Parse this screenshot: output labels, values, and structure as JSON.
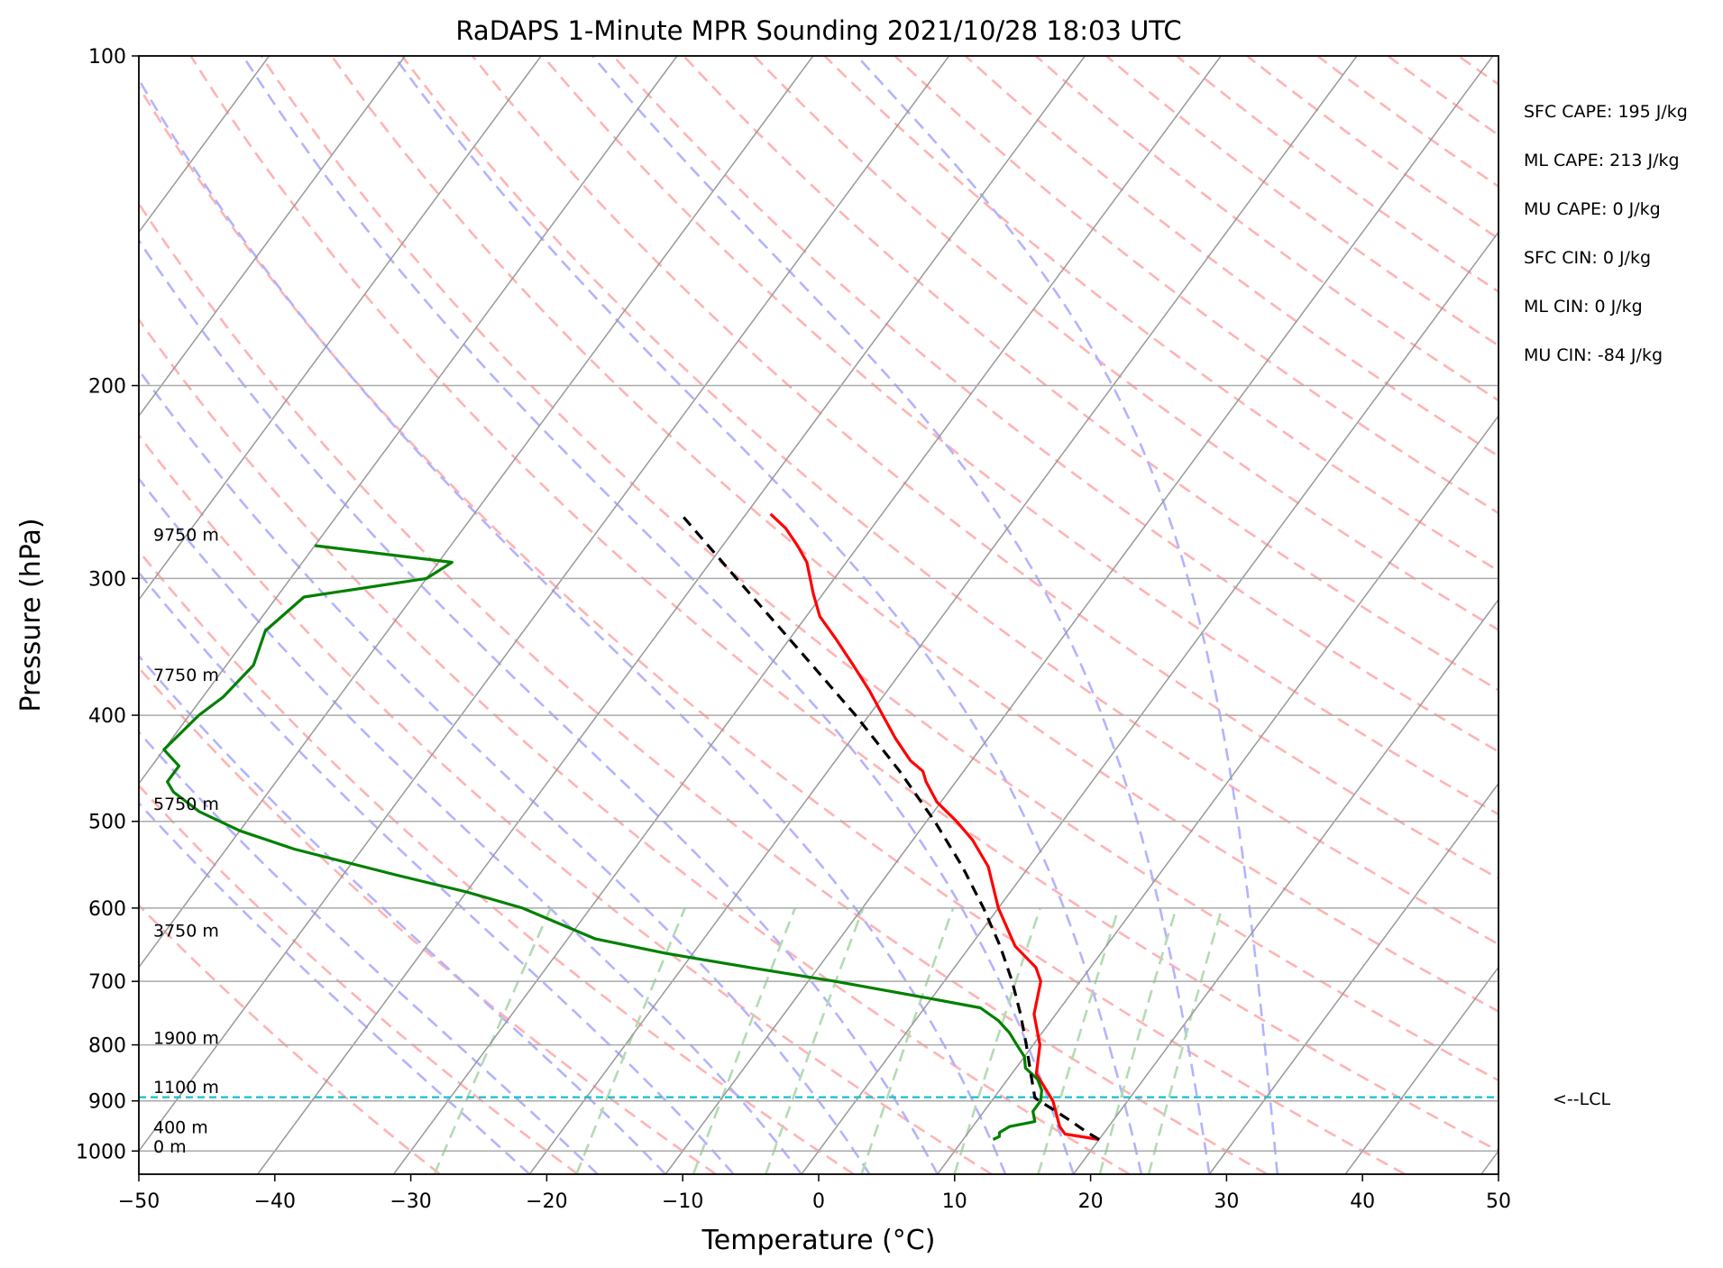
{
  "chart_data": {
    "type": "line",
    "title": "RaDAPS 1-Minute MPR Sounding 2021/10/28 18:03 UTC",
    "xlabel": "Temperature (°C)",
    "ylabel": "Pressure (hPa)",
    "xlim": [
      -50,
      50
    ],
    "ylim": [
      1050,
      100
    ],
    "y_scale": "log",
    "x_ticks": [
      -50,
      -40,
      -30,
      -20,
      -10,
      0,
      10,
      20,
      30,
      40,
      50
    ],
    "x_tick_labels": [
      "−50",
      "−40",
      "−30",
      "−20",
      "−10",
      "0",
      "10",
      "20",
      "30",
      "40",
      "50"
    ],
    "y_ticks": [
      100,
      200,
      300,
      400,
      500,
      600,
      700,
      800,
      900,
      1000
    ],
    "y_tick_labels": [
      "100",
      "200",
      "300",
      "400",
      "500",
      "600",
      "700",
      "800",
      "900",
      "1000"
    ],
    "grid": true,
    "skew_t": true,
    "series": [
      {
        "role": "temperature",
        "color": "#ff0000",
        "points": [
          {
            "p": 976,
            "t": 20.0
          },
          {
            "p": 965,
            "t": 17.2
          },
          {
            "p": 950,
            "t": 16.4
          },
          {
            "p": 900,
            "t": 14.5
          },
          {
            "p": 850,
            "t": 11.8
          },
          {
            "p": 800,
            "t": 10.5
          },
          {
            "p": 750,
            "t": 8.4
          },
          {
            "p": 700,
            "t": 7.1
          },
          {
            "p": 680,
            "t": 6.0
          },
          {
            "p": 650,
            "t": 3.3
          },
          {
            "p": 600,
            "t": 0.0
          },
          {
            "p": 550,
            "t": -3.0
          },
          {
            "p": 520,
            "t": -5.6
          },
          {
            "p": 500,
            "t": -7.8
          },
          {
            "p": 480,
            "t": -10.3
          },
          {
            "p": 460,
            "t": -12.2
          },
          {
            "p": 450,
            "t": -13.0
          },
          {
            "p": 440,
            "t": -14.5
          },
          {
            "p": 420,
            "t": -16.8
          },
          {
            "p": 400,
            "t": -19.0
          },
          {
            "p": 380,
            "t": -21.3
          },
          {
            "p": 360,
            "t": -23.9
          },
          {
            "p": 340,
            "t": -26.7
          },
          {
            "p": 325,
            "t": -29.0
          },
          {
            "p": 310,
            "t": -30.7
          },
          {
            "p": 290,
            "t": -32.9
          },
          {
            "p": 280,
            "t": -34.5
          },
          {
            "p": 270,
            "t": -36.3
          },
          {
            "p": 262,
            "t": -38.2
          }
        ]
      },
      {
        "role": "dewpoint",
        "color": "#008000",
        "points": [
          {
            "p": 976,
            "t": 12.2
          },
          {
            "p": 970,
            "t": 12.5
          },
          {
            "p": 962,
            "t": 12.3
          },
          {
            "p": 950,
            "t": 12.7
          },
          {
            "p": 940,
            "t": 14.3
          },
          {
            "p": 920,
            "t": 13.6
          },
          {
            "p": 900,
            "t": 13.6
          },
          {
            "p": 880,
            "t": 13.1
          },
          {
            "p": 860,
            "t": 12.2
          },
          {
            "p": 840,
            "t": 10.7
          },
          {
            "p": 820,
            "t": 10.0
          },
          {
            "p": 800,
            "t": 8.8
          },
          {
            "p": 780,
            "t": 7.6
          },
          {
            "p": 760,
            "t": 6.1
          },
          {
            "p": 740,
            "t": 4.1
          },
          {
            "p": 725,
            "t": -0.3
          },
          {
            "p": 700,
            "t": -8.0
          },
          {
            "p": 680,
            "t": -15.0
          },
          {
            "p": 660,
            "t": -22.0
          },
          {
            "p": 640,
            "t": -28.0
          },
          {
            "p": 600,
            "t": -35.0
          },
          {
            "p": 580,
            "t": -40.0
          },
          {
            "p": 560,
            "t": -46.0
          },
          {
            "p": 530,
            "t": -55.0
          },
          {
            "p": 510,
            "t": -60.0
          },
          {
            "p": 490,
            "t": -64.0
          },
          {
            "p": 470,
            "t": -67.0
          },
          {
            "p": 460,
            "t": -68.0
          },
          {
            "p": 445,
            "t": -68.0
          },
          {
            "p": 430,
            "t": -70.0
          },
          {
            "p": 400,
            "t": -69.3
          },
          {
            "p": 385,
            "t": -68.5
          },
          {
            "p": 360,
            "t": -68.0
          },
          {
            "p": 335,
            "t": -69.0
          },
          {
            "p": 312,
            "t": -68.0
          },
          {
            "p": 300,
            "t": -60.0
          },
          {
            "p": 290,
            "t": -59.0
          },
          {
            "p": 280,
            "t": -70.0
          }
        ]
      },
      {
        "role": "parcel",
        "color": "#000000",
        "points": [
          {
            "p": 976,
            "t": 20.0
          },
          {
            "p": 960,
            "t": 18.6
          },
          {
            "p": 940,
            "t": 17.0
          },
          {
            "p": 920,
            "t": 15.3
          },
          {
            "p": 900,
            "t": 13.5
          },
          {
            "p": 894,
            "t": 13.0
          },
          {
            "p": 850,
            "t": 11.4
          },
          {
            "p": 800,
            "t": 9.5
          },
          {
            "p": 750,
            "t": 7.4
          },
          {
            "p": 700,
            "t": 5.0
          },
          {
            "p": 650,
            "t": 2.2
          },
          {
            "p": 600,
            "t": -1.1
          },
          {
            "p": 550,
            "t": -4.9
          },
          {
            "p": 500,
            "t": -9.4
          },
          {
            "p": 450,
            "t": -14.7
          },
          {
            "p": 400,
            "t": -21.0
          },
          {
            "p": 350,
            "t": -28.5
          },
          {
            "p": 300,
            "t": -37.2
          },
          {
            "p": 262,
            "t": -44.8
          }
        ]
      }
    ],
    "lcl_pressure": 893,
    "lcl_label": "<--LCL",
    "height_labels": [
      {
        "p": 277,
        "text": "9750 m"
      },
      {
        "p": 372,
        "text": "7750 m"
      },
      {
        "p": 488,
        "text": "5750 m"
      },
      {
        "p": 637,
        "text": "3750 m"
      },
      {
        "p": 798,
        "text": "1900 m"
      },
      {
        "p": 885,
        "text": "1100 m"
      },
      {
        "p": 963,
        "text": "400 m"
      },
      {
        "p": 1003,
        "text": "0 m"
      }
    ],
    "annotations": [
      "SFC CAPE: 195 J/kg",
      "ML CAPE: 213 J/kg",
      "MU CAPE: 0 J/kg",
      "SFC CIN: 0 J/kg",
      "ML CIN: 0 J/kg",
      "MU CIN: -84 J/kg"
    ],
    "colors": {
      "temperature": "#ff0000",
      "dewpoint": "#008000",
      "parcel": "#000000",
      "lcl_line": "#17becf",
      "isotherm": "#999999",
      "dry_adiabat": "#ffb3b3",
      "moist_adiabat": "#b3b3ff",
      "mixing_ratio": "#b3dbb3"
    }
  }
}
